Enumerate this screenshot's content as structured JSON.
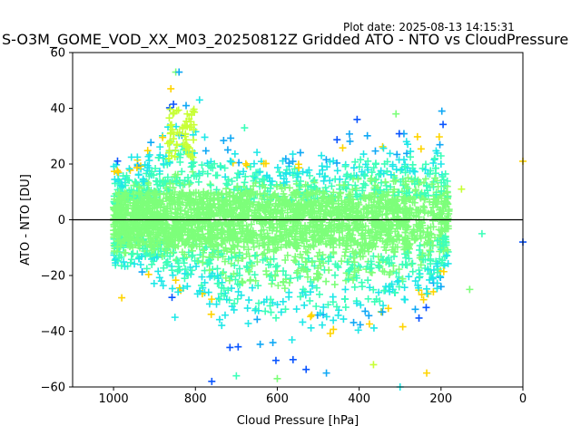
{
  "header": {
    "plot_date": "Plot date: 2025-08-13 14:15:31",
    "title": "S-O3M_GOME_VOD_XX_M03_20250812Z Gridded ATO - NTO vs CloudPressure"
  },
  "colors": {
    "points_palette": [
      "#7dff7a",
      "#3dffb9",
      "#1fe8e8",
      "#0fa8f5",
      "#0a55ff",
      "#c8ff36",
      "#ffd400"
    ],
    "zero_line": "#000000"
  },
  "chart_data": {
    "type": "scatter",
    "marker": "+",
    "title": "S-O3M_GOME_VOD_XX_M03_20250812Z Gridded ATO - NTO vs CloudPressure",
    "xlabel": "Cloud Pressure [hPa]",
    "ylabel": "ATO - NTO [DU]",
    "xlim": [
      1100,
      0
    ],
    "ylim": [
      -60,
      60
    ],
    "x_inverted": true,
    "xticks": [
      1000,
      800,
      600,
      400,
      200,
      0
    ],
    "yticks": [
      60,
      40,
      20,
      0,
      -20,
      -40,
      -60
    ],
    "reference_line_y": 0,
    "grid": false,
    "point_density_envelope": [
      {
        "pressure": 1000,
        "ymin": -28,
        "ymax": 25
      },
      {
        "pressure": 900,
        "ymin": -30,
        "ymax": 35
      },
      {
        "pressure": 850,
        "ymin": -35,
        "ymax": 53
      },
      {
        "pressure": 800,
        "ymin": -38,
        "ymax": 40
      },
      {
        "pressure": 700,
        "ymin": -56,
        "ymax": 33
      },
      {
        "pressure": 600,
        "ymin": -60,
        "ymax": 30
      },
      {
        "pressure": 500,
        "ymin": -56,
        "ymax": 32
      },
      {
        "pressure": 400,
        "ymin": -55,
        "ymax": 36
      },
      {
        "pressure": 300,
        "ymin": -52,
        "ymax": 38
      },
      {
        "pressure": 200,
        "ymin": -30,
        "ymax": 39
      },
      {
        "pressure": 100,
        "ymin": -5,
        "ymax": 11
      },
      {
        "pressure": 0,
        "ymin": -8,
        "ymax": 21
      }
    ],
    "sample_points": [
      {
        "x": 848,
        "y": 53
      },
      {
        "x": 840,
        "y": 53
      },
      {
        "x": 860,
        "y": 47
      },
      {
        "x": 790,
        "y": 43
      },
      {
        "x": 820,
        "y": 38
      },
      {
        "x": 680,
        "y": 33
      },
      {
        "x": 405,
        "y": 36
      },
      {
        "x": 310,
        "y": 38
      },
      {
        "x": 198,
        "y": 39
      },
      {
        "x": 0,
        "y": 21
      },
      {
        "x": 200,
        "y": 20
      },
      {
        "x": 150,
        "y": 11
      },
      {
        "x": 100,
        "y": -5
      },
      {
        "x": 0,
        "y": -8
      },
      {
        "x": 130,
        "y": -25
      },
      {
        "x": 200,
        "y": -24
      },
      {
        "x": 235,
        "y": -55
      },
      {
        "x": 300,
        "y": -60
      },
      {
        "x": 365,
        "y": -52
      },
      {
        "x": 700,
        "y": -56
      },
      {
        "x": 760,
        "y": -58
      },
      {
        "x": 600,
        "y": -57
      },
      {
        "x": 480,
        "y": -55
      },
      {
        "x": 980,
        "y": -28
      },
      {
        "x": 850,
        "y": -35
      }
    ]
  }
}
